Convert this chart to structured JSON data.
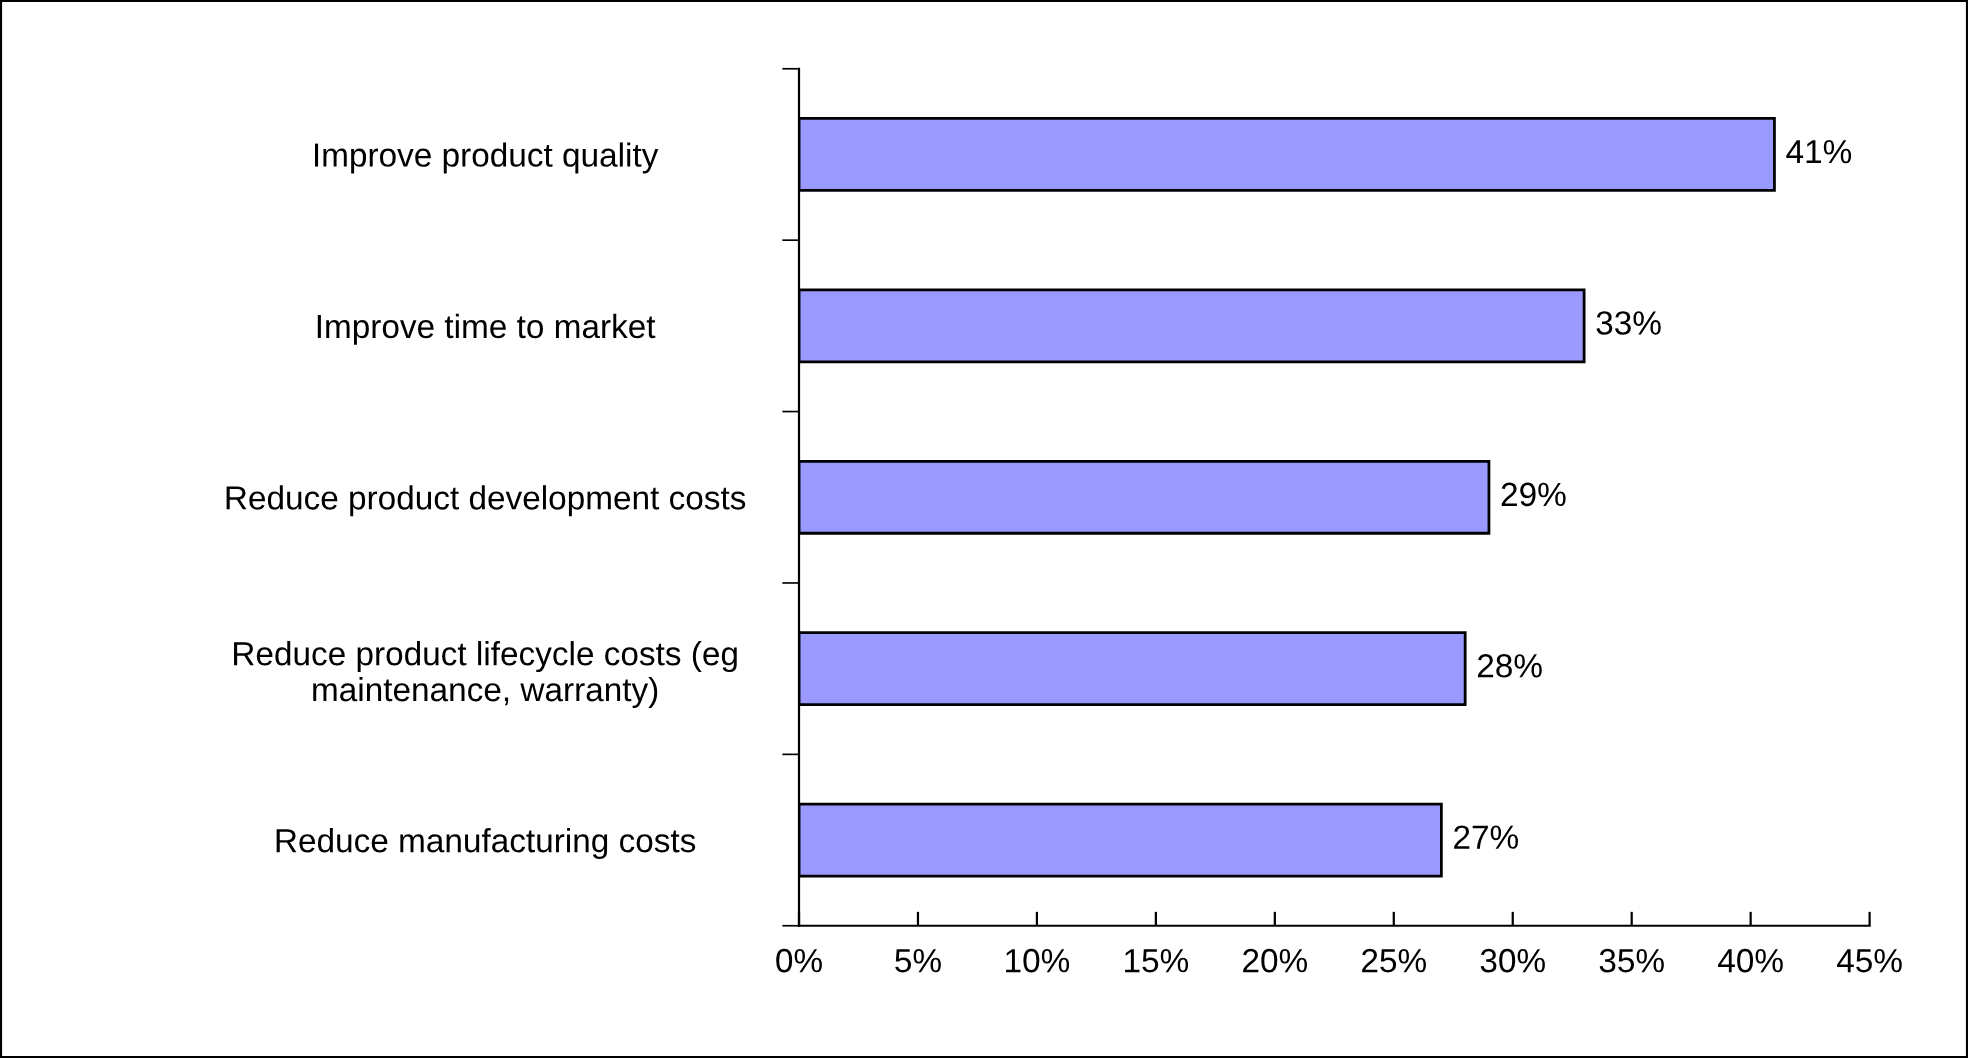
{
  "chart_data": {
    "type": "bar",
    "orientation": "horizontal",
    "categories": [
      "Improve product quality",
      "Improve time to market",
      "Reduce product development costs",
      "Reduce product lifecycle costs (eg\nmaintenance, warranty)",
      "Reduce manufacturing costs"
    ],
    "values": [
      41,
      33,
      29,
      28,
      27
    ],
    "value_labels": [
      "41%",
      "33%",
      "29%",
      "28%",
      "27%"
    ],
    "color": "#9999ff",
    "xlim": [
      0,
      45
    ],
    "xticks": [
      {
        "value": 0,
        "label": "0%"
      },
      {
        "value": 5,
        "label": "5%"
      },
      {
        "value": 10,
        "label": "10%"
      },
      {
        "value": 15,
        "label": "15%"
      },
      {
        "value": 20,
        "label": "20%"
      },
      {
        "value": 25,
        "label": "25%"
      },
      {
        "value": 30,
        "label": "30%"
      },
      {
        "value": 35,
        "label": "35%"
      },
      {
        "value": 40,
        "label": "40%"
      },
      {
        "value": 45,
        "label": "45%"
      }
    ],
    "grid": false,
    "legend": false
  }
}
